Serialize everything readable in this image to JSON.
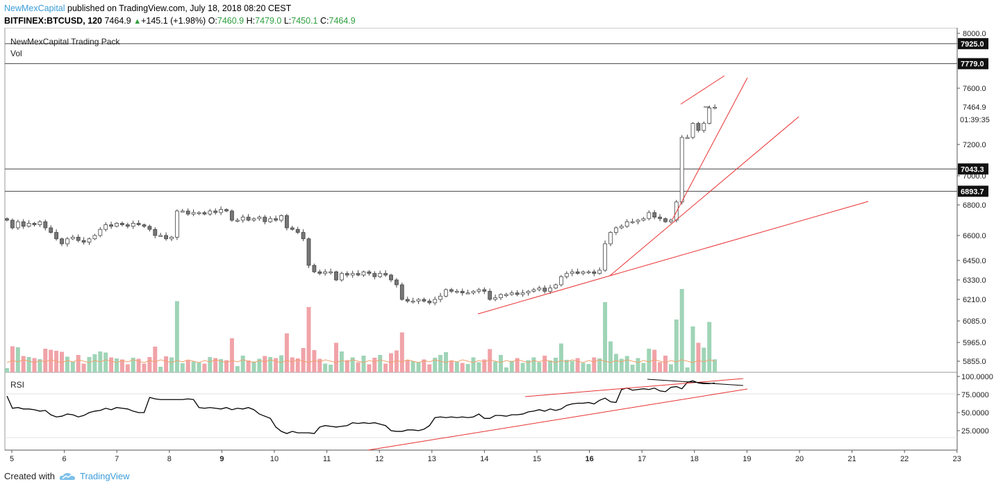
{
  "header": {
    "publisher": "NewMexCapital",
    "published_text": "published on TradingView.com, July 18, 2018 08:20 CEST",
    "symbol": "BITFINEX:BTCUSD, 120",
    "last": "7464.9",
    "change": "+145.1 (+1.98%)",
    "o_label": "O:",
    "o": "7460.9",
    "h_label": "H:",
    "h": "7479.0",
    "l_label": "L:",
    "l": "7450.1",
    "c_label": "C:",
    "c": "7464.9"
  },
  "indicators": {
    "pack_label": "NewMexCapital Trading Pack",
    "vol_label": "Vol",
    "rsi_label": "RSI"
  },
  "price_axis": {
    "ticks": [
      "8000.0",
      "7600.0",
      "7200.0",
      "7000.0",
      "6800.0",
      "6600.0",
      "6450.0",
      "6330.0",
      "6210.0",
      "6085.0",
      "5965.0",
      "5855.0"
    ],
    "current_price": "7464.9",
    "countdown": "01:39:35",
    "levels": [
      "7925.0",
      "7779.0",
      "7043.3",
      "6893.7"
    ]
  },
  "rsi_axis": {
    "ticks": [
      "100.0000",
      "75.0000",
      "50.0000",
      "25.0000"
    ]
  },
  "time_axis": {
    "labels": [
      "5",
      "6",
      "7",
      "8",
      "9",
      "10",
      "11",
      "12",
      "13",
      "14",
      "15",
      "16",
      "17",
      "18",
      "19",
      "20",
      "21",
      "22",
      "23"
    ],
    "bold": [
      "9",
      "16"
    ]
  },
  "colors": {
    "up_volume": "#9fd4b7",
    "down_volume": "#f0a3a8",
    "trendline": "#e83030",
    "level": "#444444",
    "brand": "#3b9cd9"
  },
  "chart_data": {
    "type": "candlestick",
    "symbol": "BTCUSD",
    "interval": "120",
    "x_range": [
      "5",
      "23"
    ],
    "y_range": [
      5800,
      8050
    ],
    "horizontal_levels": [
      7925.0,
      7779.0,
      7043.3,
      6893.7
    ],
    "closes": [
      6700,
      6650,
      6690,
      6660,
      6680,
      6670,
      6690,
      6650,
      6620,
      6580,
      6550,
      6580,
      6590,
      6570,
      6560,
      6580,
      6600,
      6640,
      6670,
      6660,
      6680,
      6670,
      6660,
      6680,
      6670,
      6660,
      6640,
      6600,
      6600,
      6580,
      6590,
      6760,
      6760,
      6740,
      6750,
      6750,
      6740,
      6760,
      6750,
      6770,
      6760,
      6700,
      6700,
      6720,
      6700,
      6710,
      6720,
      6690,
      6710,
      6700,
      6730,
      6650,
      6640,
      6620,
      6580,
      6420,
      6380,
      6370,
      6380,
      6380,
      6330,
      6370,
      6360,
      6370,
      6360,
      6380,
      6370,
      6350,
      6370,
      6360,
      6330,
      6300,
      6210,
      6200,
      6200,
      6210,
      6200,
      6190,
      6210,
      6230,
      6270,
      6260,
      6260,
      6250,
      6250,
      6260,
      6270,
      6260,
      6210,
      6220,
      6240,
      6240,
      6250,
      6240,
      6250,
      6260,
      6270,
      6280,
      6260,
      6280,
      6300,
      6350,
      6370,
      6380,
      6370,
      6380,
      6380,
      6370,
      6390,
      6550,
      6620,
      6650,
      6660,
      6690,
      6690,
      6700,
      6710,
      6750,
      6720,
      6710,
      6690,
      6700,
      6820,
      7250,
      7250,
      7350,
      7300,
      7350,
      7460,
      7464.9
    ],
    "rsi": [
      73,
      56,
      57,
      55,
      55,
      54,
      52,
      53,
      47,
      44,
      45,
      48,
      47,
      44,
      46,
      50,
      52,
      53,
      56,
      54,
      57,
      56,
      55,
      52,
      50,
      50,
      71,
      69,
      68,
      68,
      68,
      68,
      68,
      69,
      68,
      57,
      56,
      57,
      56,
      55,
      57,
      54,
      56,
      55,
      57,
      54,
      48,
      45,
      42,
      30,
      24,
      21,
      24,
      22,
      22,
      22,
      21,
      30,
      32,
      31,
      30,
      31,
      32,
      36,
      35,
      36,
      35,
      36,
      34,
      32,
      25,
      24,
      24,
      26,
      26,
      25,
      27,
      32,
      43,
      44,
      43,
      44,
      43,
      44,
      43,
      44,
      48,
      42,
      42,
      46,
      46,
      45,
      47,
      47,
      48,
      51,
      52,
      54,
      52,
      55,
      53,
      55,
      60,
      62,
      63,
      63,
      64,
      62,
      67,
      70,
      65,
      64,
      82,
      84,
      81,
      82,
      83,
      82,
      84,
      80,
      79,
      85,
      86,
      83,
      92,
      94,
      91,
      90,
      90,
      91
    ],
    "rsi_range": [
      0,
      100
    ]
  }
}
